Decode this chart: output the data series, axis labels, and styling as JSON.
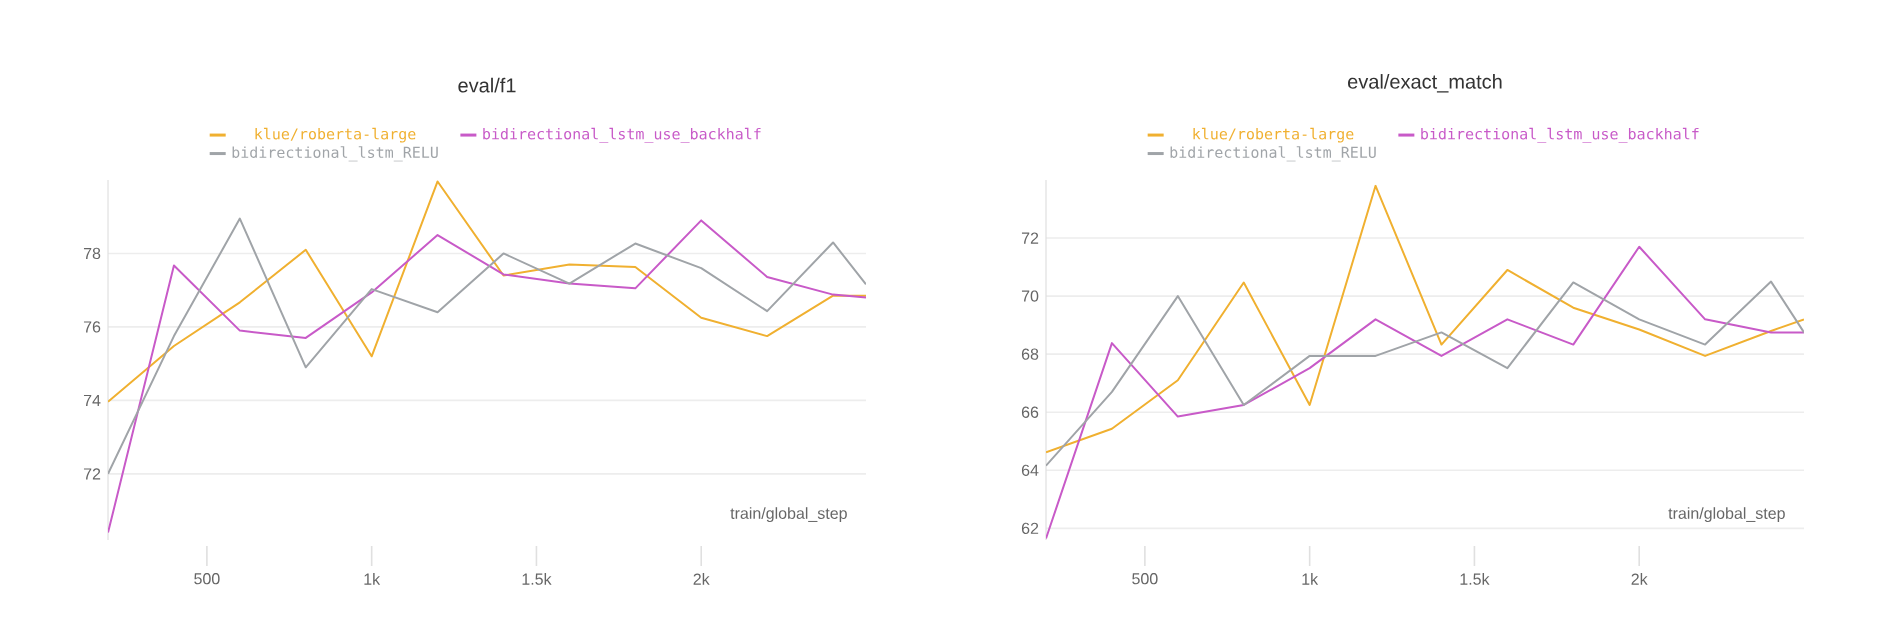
{
  "chart_data": [
    {
      "type": "line",
      "title": "eval/f1",
      "xlabel": "train/global_step",
      "xlim": [
        200,
        2500
      ],
      "ylim": [
        70.2,
        80
      ],
      "xticks": [
        500,
        {
          "value": 1000,
          "label": "1k"
        },
        {
          "value": 1500,
          "label": "1.5k"
        },
        {
          "value": 2000,
          "label": "2k"
        }
      ],
      "yticks": [
        72,
        74,
        76,
        78
      ],
      "grid": "y",
      "legend": "top",
      "line_style": "solid",
      "x": [
        200,
        400,
        600,
        800,
        1000,
        1200,
        1400,
        1600,
        1800,
        2000,
        2200,
        2400,
        2500
      ],
      "series": [
        {
          "name": "klue/roberta-large",
          "color": "#f0b030",
          "values": [
            73.96,
            75.48,
            76.67,
            78.1,
            75.2,
            79.96,
            77.4,
            77.7,
            77.63,
            76.25,
            75.75,
            76.85,
            76.85
          ]
        },
        {
          "name": "bidirectional_lstm_use_backhalf",
          "color": "#c85ac8",
          "values": [
            70.4,
            77.67,
            75.9,
            75.7,
            76.94,
            78.5,
            77.43,
            77.18,
            77.05,
            78.9,
            77.36,
            76.88,
            76.8
          ]
        },
        {
          "name": "bidirectional_lstm_RELU",
          "color": "#a0a4a8",
          "values": [
            72.0,
            75.75,
            78.95,
            74.9,
            77.03,
            76.4,
            78.0,
            77.18,
            78.27,
            77.6,
            76.43,
            78.3,
            77.16
          ]
        }
      ]
    },
    {
      "type": "line",
      "title": "eval/exact_match",
      "xlabel": "train/global_step",
      "xlim": [
        200,
        2500
      ],
      "ylim": [
        61.6,
        74
      ],
      "xticks": [
        500,
        {
          "value": 1000,
          "label": "1k"
        },
        {
          "value": 1500,
          "label": "1.5k"
        },
        {
          "value": 2000,
          "label": "2k"
        }
      ],
      "yticks": [
        62,
        64,
        66,
        68,
        70,
        72
      ],
      "grid": "y",
      "legend": "top",
      "line_style": "solid",
      "x": [
        200,
        400,
        600,
        800,
        1000,
        1200,
        1400,
        1600,
        1800,
        2000,
        2200,
        2400,
        2500
      ],
      "series": [
        {
          "name": "klue/roberta-large",
          "color": "#f0b030",
          "values": [
            64.62,
            65.43,
            67.1,
            70.47,
            66.25,
            73.8,
            68.33,
            70.9,
            69.6,
            68.85,
            67.94,
            68.8,
            69.2
          ]
        },
        {
          "name": "bidirectional_lstm_use_backhalf",
          "color": "#c85ac8",
          "values": [
            61.65,
            68.38,
            65.85,
            66.25,
            67.52,
            69.2,
            67.94,
            69.2,
            68.33,
            71.7,
            69.2,
            68.75,
            68.75
          ]
        },
        {
          "name": "bidirectional_lstm_RELU",
          "color": "#a0a4a8",
          "values": [
            64.16,
            66.7,
            70.0,
            66.25,
            67.94,
            67.94,
            68.75,
            67.52,
            70.47,
            69.2,
            68.33,
            70.5,
            68.75
          ]
        }
      ]
    }
  ]
}
